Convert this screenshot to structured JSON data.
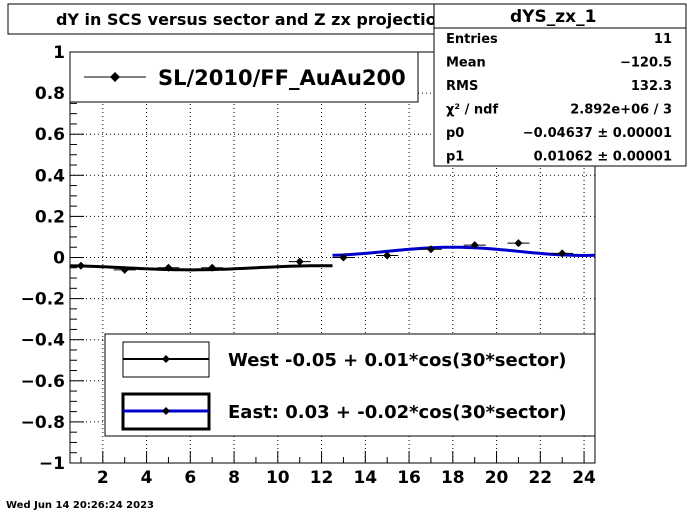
{
  "title": "dY in SCS versus sector and Z zx projection",
  "stats": {
    "name": "dYS_zx_1",
    "rows": [
      {
        "label": "Entries",
        "value": "11"
      },
      {
        "label": "Mean",
        "value": "−120.5"
      },
      {
        "label": "RMS",
        "value": "132.3"
      },
      {
        "label": "χ² / ndf",
        "value": "2.892e+06 / 3"
      },
      {
        "label": "p0",
        "value": "−0.04637 ± 0.00001"
      },
      {
        "label": "p1",
        "value": "0.01062 ± 0.00001"
      }
    ]
  },
  "timestamp": "Wed Jun 14 20:26:24 2023",
  "colors": {
    "west": "#000000",
    "east": "#0000cc",
    "grid": "#000000"
  },
  "chart_data": {
    "type": "scatter",
    "xlim": [
      0.5,
      24.5
    ],
    "ylim": [
      -1,
      1
    ],
    "x_ticks": [
      2,
      4,
      6,
      8,
      10,
      12,
      14,
      16,
      18,
      20,
      22,
      24
    ],
    "x_tick_labels": [
      "2",
      "4",
      "6",
      "8",
      "10",
      "12",
      "14",
      "16",
      "18",
      "20",
      "22",
      "24"
    ],
    "y_ticks": [
      -1,
      -0.8,
      -0.6,
      -0.4,
      -0.2,
      0,
      0.2,
      0.4,
      0.6,
      0.8,
      1
    ],
    "y_tick_labels": [
      "−1",
      "−0.8",
      "−0.6",
      "−0.4",
      "−0.2",
      "0",
      "0.2",
      "0.4",
      "0.6",
      "0.8",
      "1"
    ],
    "grid": true,
    "points": {
      "name": "SL/2010/FF_AuAu200",
      "x": [
        1,
        3,
        5,
        7,
        11,
        13,
        15,
        17,
        19,
        21,
        23
      ],
      "y": [
        -0.04,
        -0.06,
        -0.05,
        -0.05,
        -0.02,
        0.0,
        0.01,
        0.04,
        0.06,
        0.07,
        0.02
      ]
    },
    "fits": [
      {
        "name": "West -0.05 +  0.01*cos(30*sector)",
        "p0": -0.05,
        "p1": 0.01,
        "x_range": [
          0.5,
          12.5
        ],
        "color": "#000000"
      },
      {
        "name": "East:  0.03 + -0.02*cos(30*sector)",
        "p0": 0.03,
        "p1": -0.02,
        "x_range": [
          12.5,
          24.5
        ],
        "color": "#0000cc"
      }
    ]
  }
}
